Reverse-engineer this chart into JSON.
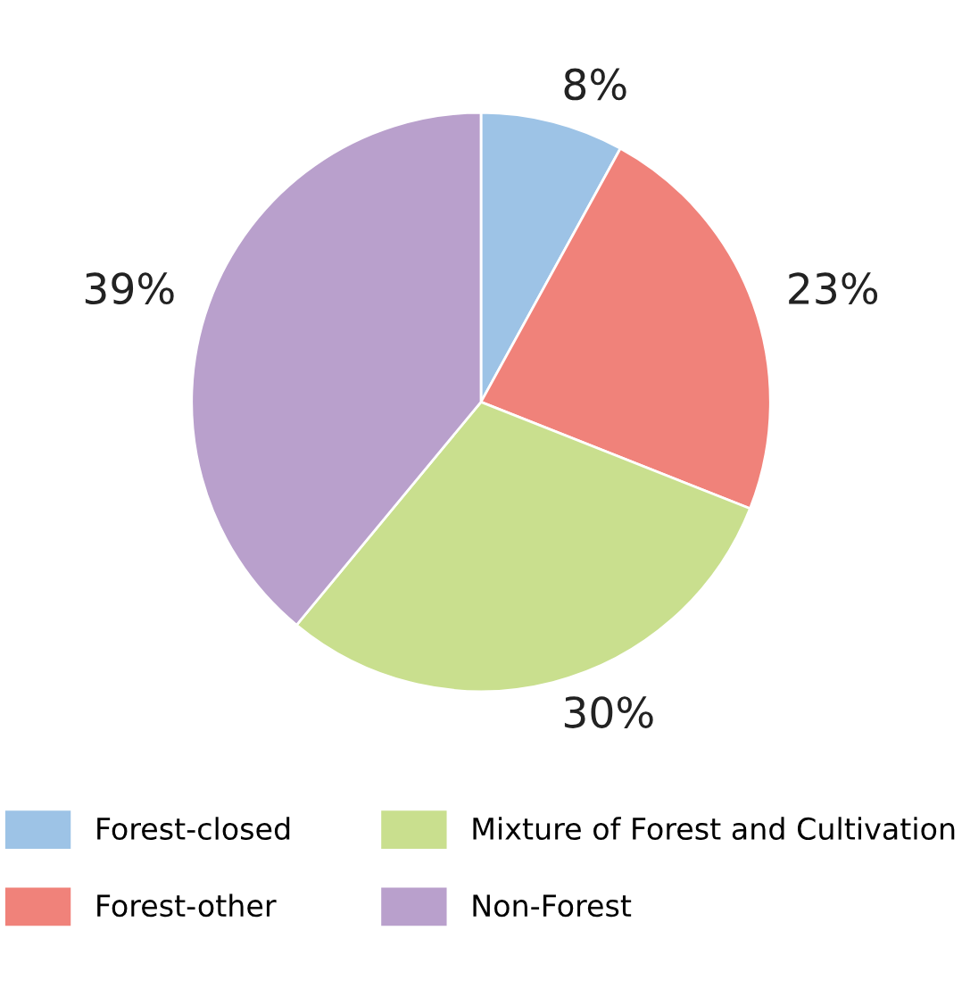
{
  "chart_data": {
    "type": "pie",
    "categories": [
      "Forest-closed",
      "Forest-other",
      "Mixture of Forest and Cultivation",
      "Non-Forest"
    ],
    "values": [
      8,
      23,
      30,
      39
    ],
    "value_labels": [
      "8%",
      "23%",
      "30%",
      "39%"
    ],
    "colors": [
      "#9dc3e6",
      "#f0827a",
      "#c9df8e",
      "#b9a0cc"
    ],
    "legend": "bottom"
  }
}
